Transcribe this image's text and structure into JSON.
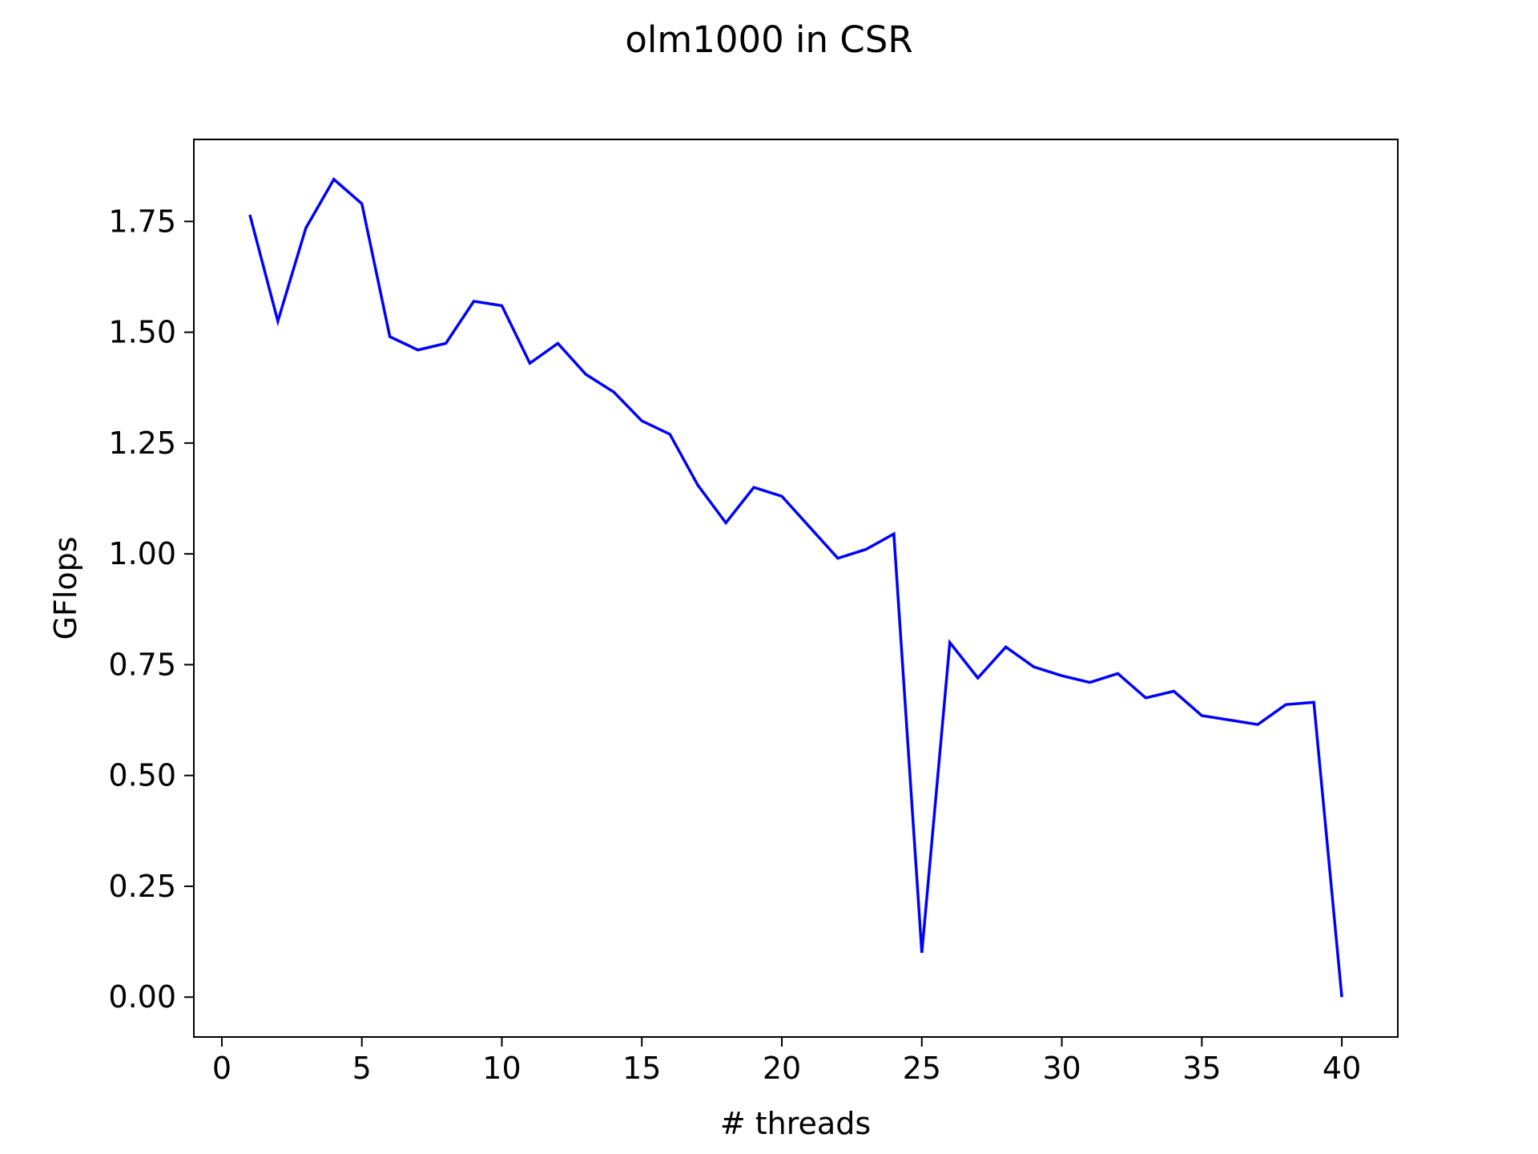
{
  "chart_data": {
    "type": "line",
    "title": "olm1000 in CSR",
    "xlabel": "# threads",
    "ylabel": "GFlops",
    "xlim": [
      -1,
      42
    ],
    "ylim": [
      -0.09,
      1.935
    ],
    "xticks": [
      0,
      5,
      10,
      15,
      20,
      25,
      30,
      35,
      40
    ],
    "xtick_labels": [
      "0",
      "5",
      "10",
      "15",
      "20",
      "25",
      "30",
      "35",
      "40"
    ],
    "yticks": [
      0,
      0.25,
      0.5,
      0.75,
      1.0,
      1.25,
      1.5,
      1.75
    ],
    "ytick_labels": [
      "0.00",
      "0.25",
      "0.50",
      "0.75",
      "1.00",
      "1.25",
      "1.50",
      "1.75"
    ],
    "grid": false,
    "line_color": "#0000ff",
    "series": [
      {
        "x": [
          1,
          2,
          3,
          4,
          5,
          6,
          7,
          8,
          9,
          10,
          11,
          12,
          13,
          14,
          15,
          16,
          17,
          18,
          19,
          20,
          21,
          22,
          23,
          24,
          25,
          26,
          27,
          28,
          29,
          30,
          31,
          32,
          33,
          34,
          35,
          36,
          37,
          38,
          39,
          40
        ],
        "values": [
          1.765,
          1.525,
          1.735,
          1.845,
          1.79,
          1.49,
          1.46,
          1.475,
          1.57,
          1.56,
          1.43,
          1.475,
          1.405,
          1.365,
          1.3,
          1.27,
          1.155,
          1.07,
          1.15,
          1.13,
          1.06,
          0.99,
          1.01,
          1.045,
          0.1,
          0.8,
          0.72,
          0.79,
          0.745,
          0.725,
          0.71,
          0.73,
          0.675,
          0.69,
          0.635,
          0.625,
          0.615,
          0.66,
          0.665,
          0.0
        ]
      }
    ]
  }
}
